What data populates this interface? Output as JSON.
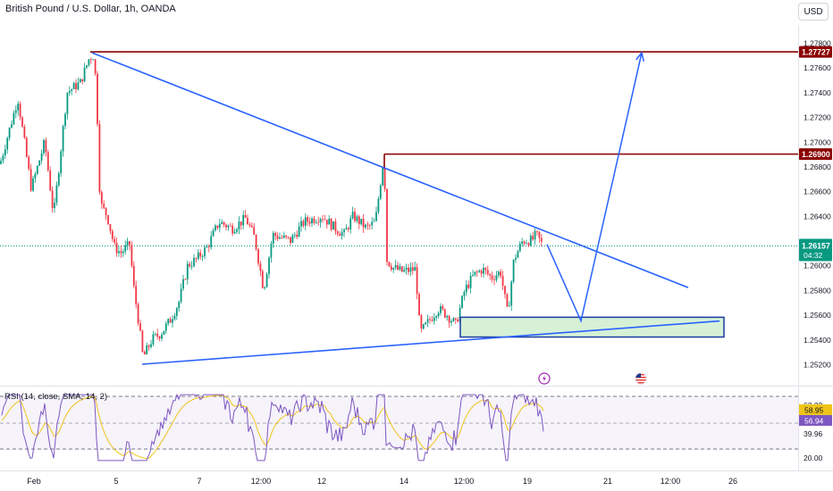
{
  "header": {
    "title": "British Pound / U.S. Dollar, 1h, OANDA",
    "currency": "USD"
  },
  "chart_data": {
    "type": "candlestick",
    "y_axis": {
      "range": [
        1.251,
        1.279
      ],
      "ticks": [
        "1.27800",
        "1.27600",
        "1.27400",
        "1.27200",
        "1.27000",
        "1.26800",
        "1.26600",
        "1.26400",
        "1.26000",
        "1.25800",
        "1.25600",
        "1.25400",
        "1.25200"
      ]
    },
    "x_axis": {
      "ticks": [
        "Feb",
        "5",
        "7",
        "12:00",
        "12",
        "14",
        "12:00",
        "19",
        "21",
        "12:00",
        "26"
      ]
    },
    "price_path": [
      [
        0,
        1.2682
      ],
      [
        20,
        1.2735
      ],
      [
        35,
        1.2662
      ],
      [
        50,
        1.27
      ],
      [
        60,
        1.264
      ],
      [
        75,
        1.274
      ],
      [
        90,
        1.2748
      ],
      [
        100,
        1.2768
      ],
      [
        105,
        1.277
      ],
      [
        108,
        1.274
      ],
      [
        112,
        1.265
      ],
      [
        120,
        1.264
      ],
      [
        128,
        1.2615
      ],
      [
        135,
        1.261
      ],
      [
        145,
        1.2617
      ],
      [
        150,
        1.258
      ],
      [
        155,
        1.2555
      ],
      [
        160,
        1.2525
      ],
      [
        170,
        1.254
      ],
      [
        180,
        1.2545
      ],
      [
        190,
        1.2555
      ],
      [
        200,
        1.257
      ],
      [
        210,
        1.26
      ],
      [
        220,
        1.2605
      ],
      [
        232,
        1.2615
      ],
      [
        245,
        1.2635
      ],
      [
        260,
        1.263
      ],
      [
        275,
        1.2638
      ],
      [
        285,
        1.2622
      ],
      [
        295,
        1.258
      ],
      [
        305,
        1.2625
      ],
      [
        325,
        1.262
      ],
      [
        340,
        1.2635
      ],
      [
        360,
        1.264
      ],
      [
        375,
        1.263
      ],
      [
        385,
        1.2625
      ],
      [
        395,
        1.264
      ],
      [
        410,
        1.263
      ],
      [
        420,
        1.2635
      ],
      [
        428,
        1.268
      ],
      [
        430,
        1.269
      ],
      [
        432,
        1.2605
      ],
      [
        440,
        1.2598
      ],
      [
        450,
        1.2595
      ],
      [
        465,
        1.2597
      ],
      [
        470,
        1.2545
      ],
      [
        480,
        1.2555
      ],
      [
        490,
        1.2565
      ],
      [
        500,
        1.256
      ],
      [
        510,
        1.2552
      ],
      [
        520,
        1.258
      ],
      [
        530,
        1.2592
      ],
      [
        540,
        1.2597
      ],
      [
        550,
        1.259
      ],
      [
        560,
        1.2595
      ],
      [
        568,
        1.256
      ],
      [
        575,
        1.2605
      ],
      [
        585,
        1.262
      ],
      [
        595,
        1.262
      ],
      [
        600,
        1.2625
      ],
      [
        608,
        1.2615
      ]
    ],
    "annotations": {
      "resistance_1": {
        "value": 1.27727,
        "label": "1.27727"
      },
      "resistance_2": {
        "value": 1.269,
        "label": "1.26900"
      },
      "current_price": {
        "value": 1.26157,
        "label": "1.26157",
        "countdown": "04:32"
      },
      "trendline_upper": [
        [
          103,
          1.2772
        ],
        [
          770,
          1.2582
        ]
      ],
      "trendline_lower": [
        [
          159,
          1.252
        ],
        [
          805,
          1.2555
        ]
      ],
      "demand_zone": {
        "x": [
          515,
          810
        ],
        "y": [
          1.2542,
          1.2558
        ]
      },
      "projection": [
        [
          612,
          1.2617
        ],
        [
          650,
          1.2555
        ],
        [
          718,
          1.2772
        ]
      ]
    },
    "rsi": {
      "title": "RSI (14, close, SMA, 14, 2)",
      "levels": [
        "63.22",
        "39.96",
        "20.00"
      ],
      "current": {
        "rsi": "58.95",
        "sma": "56.94"
      },
      "colors": {
        "rsi": "#7e57c2",
        "sma": "#f0c419"
      }
    },
    "colors": {
      "bull": "#089981",
      "bear": "#f23645",
      "trendline": "#2962ff",
      "level": "#8b0000",
      "zone": "#c8ecc8",
      "price_tag": "#089981"
    }
  }
}
